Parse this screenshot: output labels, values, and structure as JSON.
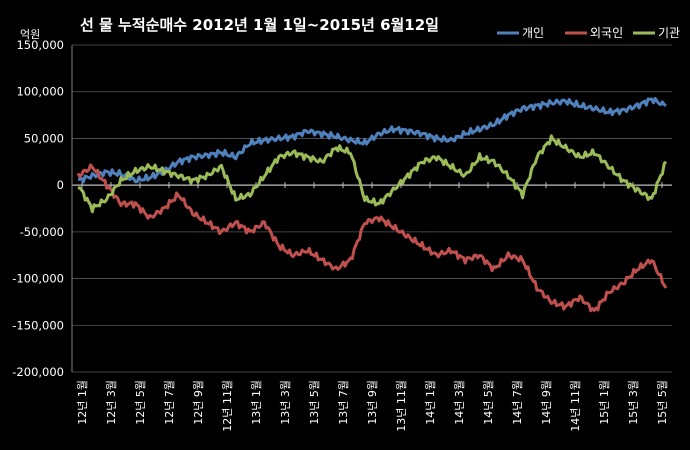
{
  "chart_data": {
    "type": "line",
    "title": "선 물 누적순매수 2012년 1월 1일~2015년 6월12일",
    "unit_label": "억원",
    "ylim": [
      -200000,
      150000
    ],
    "yticks": [
      150000,
      100000,
      50000,
      0,
      -50000,
      -100000,
      -150000,
      -200000
    ],
    "ytick_labels": [
      "150,000",
      "100,000",
      "50,000",
      "0",
      "-50,000",
      "-100,000",
      "-150,000",
      "-200,000"
    ],
    "xtick_labels": [
      "12년 1월",
      "12년 3월",
      "12년 5월",
      "12년 7월",
      "12년 9월",
      "12년 11월",
      "13년 1월",
      "13년 3월",
      "13년 5월",
      "13년 7월",
      "13년 9월",
      "13년 11월",
      "14년 1월",
      "14년 3월",
      "14년 5월",
      "14년 7월",
      "14년 9월",
      "14년 11월",
      "15년 1월",
      "15년 3월",
      "15년 5월"
    ],
    "x": [
      "2012-01",
      "2012-02",
      "2012-03",
      "2012-04",
      "2012-05",
      "2012-06",
      "2012-07",
      "2012-08",
      "2012-09",
      "2012-10",
      "2012-11",
      "2012-12",
      "2013-01",
      "2013-02",
      "2013-03",
      "2013-04",
      "2013-05",
      "2013-06",
      "2013-07",
      "2013-08",
      "2013-09",
      "2013-10",
      "2013-11",
      "2013-12",
      "2014-01",
      "2014-02",
      "2014-03",
      "2014-04",
      "2014-05",
      "2014-06",
      "2014-07",
      "2014-08",
      "2014-09",
      "2014-10",
      "2014-11",
      "2014-12",
      "2015-01",
      "2015-02",
      "2015-03",
      "2015-04",
      "2015-05",
      "2015-06"
    ],
    "grid": true,
    "legend_position": "top-right",
    "series": [
      {
        "name": "개인",
        "color": "#4f81bd",
        "values": [
          5000,
          10000,
          14000,
          12000,
          5000,
          8000,
          15000,
          25000,
          30000,
          32000,
          35000,
          30000,
          45000,
          48000,
          50000,
          52000,
          58000,
          55000,
          52000,
          48000,
          45000,
          55000,
          60000,
          58000,
          55000,
          50000,
          48000,
          55000,
          60000,
          65000,
          75000,
          82000,
          85000,
          88000,
          90000,
          85000,
          82000,
          78000,
          80000,
          85000,
          92000,
          85000
        ]
      },
      {
        "name": "외국인",
        "color": "#c0504d",
        "values": [
          10000,
          20000,
          0,
          -20000,
          -20000,
          -35000,
          -25000,
          -10000,
          -30000,
          -40000,
          -50000,
          -40000,
          -50000,
          -40000,
          -65000,
          -75000,
          -70000,
          -80000,
          -90000,
          -80000,
          -40000,
          -35000,
          -45000,
          -55000,
          -65000,
          -75000,
          -70000,
          -80000,
          -75000,
          -90000,
          -75000,
          -80000,
          -110000,
          -125000,
          -130000,
          -120000,
          -135000,
          -115000,
          -105000,
          -90000,
          -80000,
          -110000
        ]
      },
      {
        "name": "기관",
        "color": "#9bbb59",
        "values": [
          0,
          -25000,
          -15000,
          5000,
          15000,
          20000,
          15000,
          10000,
          5000,
          10000,
          20000,
          -15000,
          -10000,
          10000,
          30000,
          35000,
          30000,
          25000,
          40000,
          35000,
          -15000,
          -20000,
          -5000,
          10000,
          25000,
          30000,
          20000,
          10000,
          30000,
          25000,
          10000,
          -10000,
          30000,
          50000,
          40000,
          30000,
          35000,
          20000,
          5000,
          -5000,
          -15000,
          25000
        ]
      }
    ]
  }
}
